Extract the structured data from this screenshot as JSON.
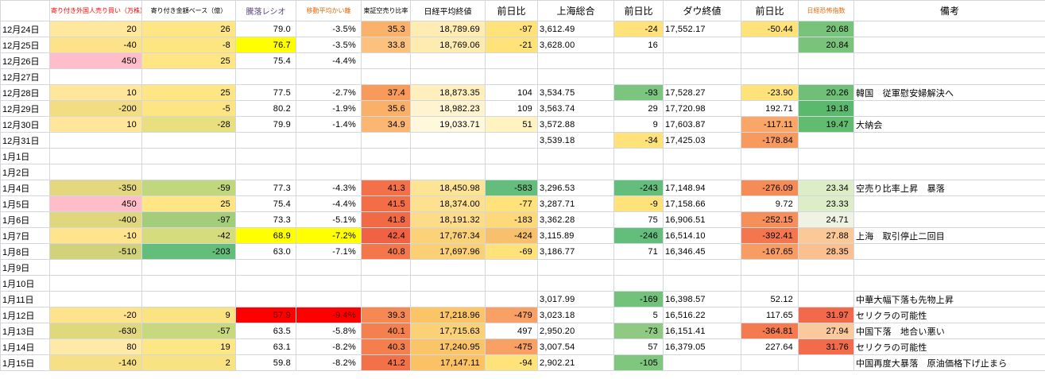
{
  "sheet": {
    "neg_color": "#e00000",
    "grid_color": "#d3d7de",
    "columns": [
      {
        "key": "date",
        "label": "",
        "fs": 11,
        "color": "#000000",
        "align": "left"
      },
      {
        "key": "foreign",
        "label": "寄り付き外国人売り買い（万株）",
        "fs": 8,
        "color": "#ff0000",
        "align": "right",
        "negRed": true
      },
      {
        "key": "amount",
        "label": "寄り付き金額ベース（億）",
        "fs": 8,
        "color": "#000000",
        "align": "right",
        "negRed": true
      },
      {
        "key": "ratio",
        "label": "騰落レシオ",
        "fs": 10,
        "color": "#5f497a",
        "align": "right",
        "negRed": false
      },
      {
        "key": "kairi",
        "label": "移動平均かい離",
        "fs": 8,
        "color": "#e26b0a",
        "align": "right",
        "negRed": false
      },
      {
        "key": "short_ratio",
        "label": "東証空売り比率",
        "fs": 8,
        "color": "#000000",
        "align": "right",
        "negRed": false
      },
      {
        "key": "nikkei_close",
        "label": "日経平均終値",
        "fs": 10,
        "color": "#000000",
        "align": "right",
        "negRed": false
      },
      {
        "key": "nikkei_chg",
        "label": "前日比",
        "fs": 12,
        "color": "#000000",
        "align": "right",
        "negRed": true
      },
      {
        "key": "shanghai",
        "label": "上海総合",
        "fs": 12,
        "color": "#000000",
        "align": "left",
        "negRed": false
      },
      {
        "key": "shanghai_chg",
        "label": "前日比",
        "fs": 12,
        "color": "#000000",
        "align": "right",
        "negRed": true
      },
      {
        "key": "dow",
        "label": "ダウ終値",
        "fs": 12,
        "color": "#000000",
        "align": "left",
        "negRed": false
      },
      {
        "key": "dow_chg",
        "label": "前日比",
        "fs": 12,
        "color": "#000000",
        "align": "right",
        "negRed": true
      },
      {
        "key": "vix",
        "label": "日経恐怖指数",
        "fs": 8,
        "color": "#e26b0a",
        "align": "right",
        "negRed": false
      },
      {
        "key": "remark",
        "label": "備考",
        "fs": 12,
        "color": "#000000",
        "align": "left",
        "negRed": false
      }
    ],
    "rows": [
      {
        "date": "12月24日",
        "cells": [
          {
            "v": "20",
            "bg": "#ffe79c"
          },
          {
            "v": "26",
            "bg": "#ffe583"
          },
          {
            "v": "79.0"
          },
          {
            "v": "-3.5%"
          },
          {
            "v": "35.3",
            "bg": "#fab26b"
          },
          {
            "v": "18,789.69",
            "bg": "#feecb2"
          },
          {
            "v": "-97",
            "bg": "#ffe37a"
          },
          {
            "v": "3,612.49"
          },
          {
            "v": "-24",
            "bg": "#ffe37a"
          },
          {
            "v": "17,552.17"
          },
          {
            "v": "-50.44",
            "bg": "#ffe37a"
          },
          {
            "v": "20.68",
            "bg": "#76c379"
          },
          null
        ]
      },
      {
        "date": "12月25日",
        "cells": [
          {
            "v": "-40",
            "bg": "#fee289"
          },
          {
            "v": "-8",
            "bg": "#fde582"
          },
          {
            "v": "76.7",
            "bg": "#ffff00"
          },
          {
            "v": "-3.5%"
          },
          {
            "v": "33.8",
            "bg": "#fcc27d"
          },
          {
            "v": "18,769.06",
            "bg": "#feebaf"
          },
          {
            "v": "-21",
            "bg": "#ffe37a"
          },
          {
            "v": "3,628.00"
          },
          {
            "v": "16"
          },
          null,
          null,
          {
            "v": "20.84",
            "bg": "#79c47a"
          },
          null
        ]
      },
      {
        "date": "12月26日",
        "cells": [
          {
            "v": "450",
            "bg": "#ffbdc9"
          },
          {
            "v": "25",
            "bg": "#ffe583"
          },
          {
            "v": "75.4"
          },
          {
            "v": "-4.4%"
          },
          null,
          null,
          null,
          null,
          null,
          null,
          null,
          null,
          null
        ]
      },
      {
        "date": "12月27日",
        "cells": [
          null,
          null,
          null,
          null,
          null,
          null,
          null,
          null,
          null,
          null,
          null,
          null,
          null
        ]
      },
      {
        "date": "12月28日",
        "cells": [
          {
            "v": "10",
            "bg": "#ffe69a"
          },
          {
            "v": "25",
            "bg": "#ffe583"
          },
          {
            "v": "77.5"
          },
          {
            "v": "-2.7%"
          },
          {
            "v": "37.4",
            "bg": "#f89a5b"
          },
          {
            "v": "18,873.35",
            "bg": "#feefbd"
          },
          {
            "v": "104"
          },
          {
            "v": "3,534.75"
          },
          {
            "v": "-93",
            "bg": "#7cc57f"
          },
          {
            "v": "17,528.27"
          },
          {
            "v": "-23.90",
            "bg": "#ffe37a"
          },
          {
            "v": "20.26",
            "bg": "#6fc076"
          },
          {
            "v": "韓国　従軍慰安婦解決へ"
          }
        ]
      },
      {
        "date": "12月29日",
        "cells": [
          {
            "v": "-200",
            "bg": "#f2dd83"
          },
          {
            "v": "-5",
            "bg": "#fee583"
          },
          {
            "v": "80.2"
          },
          {
            "v": "-1.9%"
          },
          {
            "v": "35.6",
            "bg": "#fab069"
          },
          {
            "v": "18,982.23",
            "bg": "#fff4cf"
          },
          {
            "v": "109"
          },
          {
            "v": "3,563.74"
          },
          {
            "v": "29"
          },
          {
            "v": "17,720.98"
          },
          {
            "v": "192.71"
          },
          {
            "v": "19.18",
            "bg": "#5ab96c"
          },
          null
        ]
      },
      {
        "date": "12月30日",
        "cells": [
          {
            "v": "10",
            "bg": "#ffe69a"
          },
          {
            "v": "-28",
            "bg": "#e8e07f"
          },
          {
            "v": "79.9"
          },
          {
            "v": "-1.4%"
          },
          {
            "v": "34.9",
            "bg": "#fbb671"
          },
          {
            "v": "19,033.71",
            "bg": "#fff8dd"
          },
          {
            "v": "51",
            "bg": "#fff3c2"
          },
          {
            "v": "3,572.88"
          },
          {
            "v": "9"
          },
          {
            "v": "17,603.87"
          },
          {
            "v": "-117.11",
            "bg": "#f9a668"
          },
          {
            "v": "19.47",
            "bg": "#61bc6f"
          },
          {
            "v": "大納会"
          }
        ]
      },
      {
        "date": "12月31日",
        "cells": [
          null,
          null,
          null,
          null,
          null,
          null,
          null,
          {
            "v": "3,539.18"
          },
          {
            "v": "-34",
            "bg": "#ffe37a"
          },
          {
            "v": "17,425.03"
          },
          {
            "v": "-178.84",
            "bg": "#f79a60"
          },
          null,
          null
        ]
      },
      {
        "date": "1月1日",
        "cells": [
          null,
          null,
          null,
          null,
          null,
          null,
          null,
          null,
          null,
          null,
          null,
          null,
          null
        ]
      },
      {
        "date": "1月2日",
        "cells": [
          null,
          null,
          null,
          null,
          null,
          null,
          null,
          null,
          null,
          null,
          null,
          null,
          null
        ]
      },
      {
        "date": "1月4日",
        "cells": [
          {
            "v": "-350",
            "bg": "#e4d87e"
          },
          {
            "v": "-59",
            "bg": "#c1d77d"
          },
          {
            "v": "77.3"
          },
          {
            "v": "-4.3%"
          },
          {
            "v": "41.3",
            "bg": "#f37048"
          },
          {
            "v": "18,450.98",
            "bg": "#fde394"
          },
          {
            "v": "-583",
            "bg": "#63be7b"
          },
          {
            "v": "3,296.53"
          },
          {
            "v": "-243",
            "bg": "#63be7b"
          },
          {
            "v": "17,148.94"
          },
          {
            "v": "-276.09",
            "bg": "#f68c55"
          },
          {
            "v": "23.34",
            "bg": "#dcedc8"
          },
          {
            "v": "空売り比率上昇　暴落"
          }
        ]
      },
      {
        "date": "1月5日",
        "cells": [
          {
            "v": "450",
            "bg": "#ffbdc9"
          },
          {
            "v": "25",
            "bg": "#ffe583"
          },
          {
            "v": "75.4"
          },
          {
            "v": "-4.4%"
          },
          {
            "v": "41.5",
            "bg": "#f36d47"
          },
          {
            "v": "18,374.00",
            "bg": "#fde090"
          },
          {
            "v": "-77",
            "bg": "#ffe37a"
          },
          {
            "v": "3,287.71"
          },
          {
            "v": "-9",
            "bg": "#ffe37a"
          },
          {
            "v": "17,158.66"
          },
          {
            "v": "9.72"
          },
          {
            "v": "23.33",
            "bg": "#dcedc8"
          },
          null
        ]
      },
      {
        "date": "1月6日",
        "cells": [
          {
            "v": "-400",
            "bg": "#dfd67d"
          },
          {
            "v": "-97",
            "bg": "#a3cd7b"
          },
          {
            "v": "73.3"
          },
          {
            "v": "-5.1%"
          },
          {
            "v": "41.8",
            "bg": "#f26946"
          },
          {
            "v": "18,191.32",
            "bg": "#fcdc88"
          },
          {
            "v": "-183",
            "bg": "#fed97a"
          },
          {
            "v": "3,362.28"
          },
          {
            "v": "75"
          },
          {
            "v": "16,906.51"
          },
          {
            "v": "-252.15",
            "bg": "#f6905a"
          },
          {
            "v": "24.71",
            "bg": "#eef3e3"
          },
          null
        ]
      },
      {
        "date": "1月7日",
        "cells": [
          {
            "v": "-10",
            "bg": "#ffe38d"
          },
          {
            "v": "-42",
            "bg": "#d6db7e"
          },
          {
            "v": "68.9",
            "bg": "#ffff00"
          },
          {
            "v": "-7.2%",
            "bg": "#ffff00"
          },
          {
            "v": "42.4",
            "bg": "#f16244"
          },
          {
            "v": "17,767.34",
            "bg": "#fbd277"
          },
          {
            "v": "-424",
            "bg": "#f8c06c"
          },
          {
            "v": "3,115.89"
          },
          {
            "v": "-246",
            "bg": "#63be7b"
          },
          {
            "v": "16,514.10"
          },
          {
            "v": "-392.41",
            "bg": "#f4764f"
          },
          {
            "v": "27.88",
            "bg": "#fbc998"
          },
          {
            "v": "上海　取引停止二回目"
          }
        ]
      },
      {
        "date": "1月8日",
        "cells": [
          {
            "v": "-510",
            "bg": "#d2d27b"
          },
          {
            "v": "-203",
            "bg": "#63be7b"
          },
          {
            "v": "63.0"
          },
          {
            "v": "-7.1%"
          },
          {
            "v": "40.8",
            "bg": "#f4774c"
          },
          {
            "v": "17,697.96",
            "bg": "#fbd074"
          },
          {
            "v": "-69",
            "bg": "#ffe37a"
          },
          {
            "v": "3,186.77"
          },
          {
            "v": "71"
          },
          {
            "v": "16,346.45"
          },
          {
            "v": "-167.65",
            "bg": "#f79c62"
          },
          {
            "v": "28.35",
            "bg": "#fac090"
          },
          null
        ]
      },
      {
        "date": "1月9日",
        "cells": [
          null,
          null,
          null,
          null,
          null,
          null,
          null,
          null,
          null,
          null,
          null,
          null,
          null
        ]
      },
      {
        "date": "1月10日",
        "cells": [
          null,
          null,
          null,
          null,
          null,
          null,
          null,
          null,
          null,
          null,
          null,
          null,
          null
        ]
      },
      {
        "date": "1月11日",
        "cells": [
          null,
          null,
          null,
          null,
          null,
          null,
          null,
          {
            "v": "3,017.99"
          },
          {
            "v": "-169",
            "bg": "#72c27c"
          },
          {
            "v": "16,398.57"
          },
          {
            "v": "52.12"
          },
          null,
          {
            "v": "中華大幅下落も先物上昇"
          }
        ]
      },
      {
        "date": "1月12日",
        "cells": [
          {
            "v": "-20",
            "bg": "#ffe28c"
          },
          {
            "v": "9",
            "bg": "#fbe382"
          },
          {
            "v": "57.9",
            "bg": "#ff0000",
            "fg": "#5a0000"
          },
          {
            "v": "-9.4%",
            "bg": "#ff0000",
            "fg": "#5a0000"
          },
          {
            "v": "39.3",
            "bg": "#f68853"
          },
          {
            "v": "17,218.96",
            "bg": "#fac467"
          },
          {
            "v": "-479",
            "bg": "#f9a065"
          },
          {
            "v": "3,023.18"
          },
          {
            "v": "5"
          },
          {
            "v": "16,516.22"
          },
          {
            "v": "117.65"
          },
          {
            "v": "31.97",
            "bg": "#f2694b"
          },
          {
            "v": "セリクラの可能性"
          }
        ]
      },
      {
        "date": "1月13日",
        "cells": [
          {
            "v": "-630",
            "bg": "#e0d87d"
          },
          {
            "v": "-57",
            "bg": "#c8d87e"
          },
          {
            "v": "63.5"
          },
          {
            "v": "-5.8%"
          },
          {
            "v": "40.1",
            "bg": "#f5804f"
          },
          {
            "v": "17,715.63",
            "bg": "#fbd175"
          },
          {
            "v": "497"
          },
          {
            "v": "2,950.20"
          },
          {
            "v": "-73",
            "bg": "#90ca82"
          },
          {
            "v": "16,151.41"
          },
          {
            "v": "-364.81",
            "bg": "#f47a50"
          },
          {
            "v": "27.94",
            "bg": "#fbca9c"
          },
          {
            "v": "中国下落　地合い悪い"
          }
        ]
      },
      {
        "date": "1月14日",
        "cells": [
          {
            "v": "80",
            "bg": "#ffe9a6"
          },
          {
            "v": "19",
            "bg": "#fde684"
          },
          {
            "v": "63.1"
          },
          {
            "v": "-8.2%"
          },
          {
            "v": "40.3",
            "bg": "#f57e4e"
          },
          {
            "v": "17,240.95",
            "bg": "#fac568"
          },
          {
            "v": "-475",
            "bg": "#f9a065"
          },
          {
            "v": "3,007.54"
          },
          {
            "v": "57"
          },
          {
            "v": "16,379.05"
          },
          {
            "v": "227.64"
          },
          {
            "v": "31.76",
            "bg": "#f26c4c"
          },
          {
            "v": "セリクラの可能性"
          }
        ]
      },
      {
        "date": "1月15日",
        "cells": [
          {
            "v": "-140",
            "bg": "#f7df85"
          },
          {
            "v": "2",
            "bg": "#f9e281"
          },
          {
            "v": "59.8"
          },
          {
            "v": "-8.2%"
          },
          {
            "v": "41.2",
            "bg": "#f37149"
          },
          {
            "v": "17,147.11",
            "bg": "#fac265"
          },
          {
            "v": "-94",
            "bg": "#ffe37a"
          },
          {
            "v": "2,902.21"
          },
          {
            "v": "-105",
            "bg": "#7fc67e"
          },
          null,
          null,
          null,
          {
            "v": "中国再度大暴落　原油価格下げ止まら"
          }
        ]
      }
    ]
  }
}
